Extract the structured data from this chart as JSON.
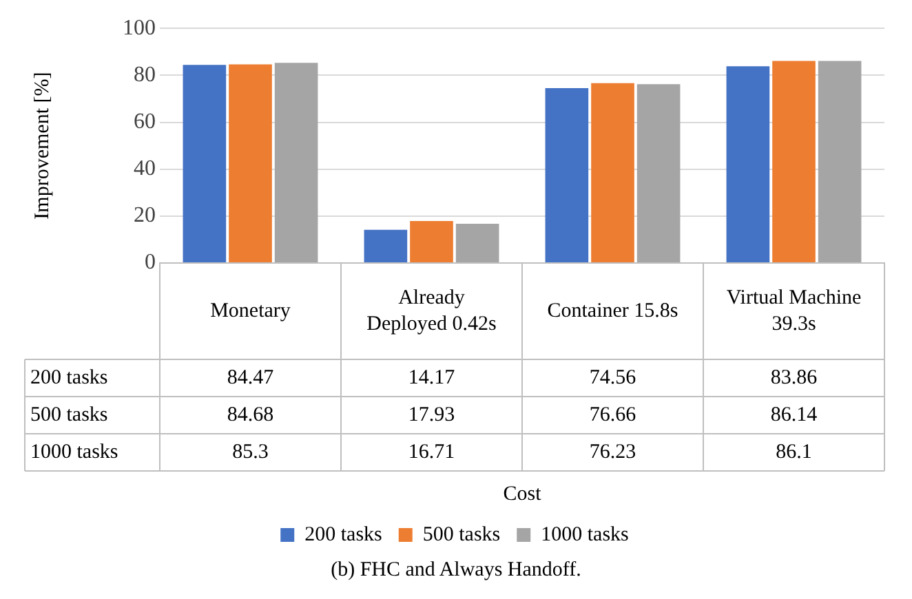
{
  "chart_data": {
    "type": "bar",
    "categories": [
      "Monetary",
      "Already Deployed 0.42s",
      "Container 15.8s",
      "Virtual Machine 39.3s"
    ],
    "series": [
      {
        "name": "200 tasks",
        "color": "#4472c4",
        "values": [
          84.47,
          14.17,
          74.56,
          83.86
        ]
      },
      {
        "name": "500 tasks",
        "color": "#ed7d31",
        "values": [
          84.68,
          17.93,
          76.66,
          86.14
        ]
      },
      {
        "name": "1000 tasks",
        "color": "#a5a5a5",
        "values": [
          85.3,
          16.71,
          76.23,
          86.1
        ]
      }
    ],
    "ylabel": "Improvement [%]",
    "ylim": [
      0,
      100
    ],
    "yticks": [
      0,
      20,
      40,
      60,
      80,
      100
    ],
    "grid": "y",
    "legend": "bottom",
    "data_labels": true,
    "annotations": [
      "Cost",
      "(b) FHC and Always Handoff."
    ]
  }
}
